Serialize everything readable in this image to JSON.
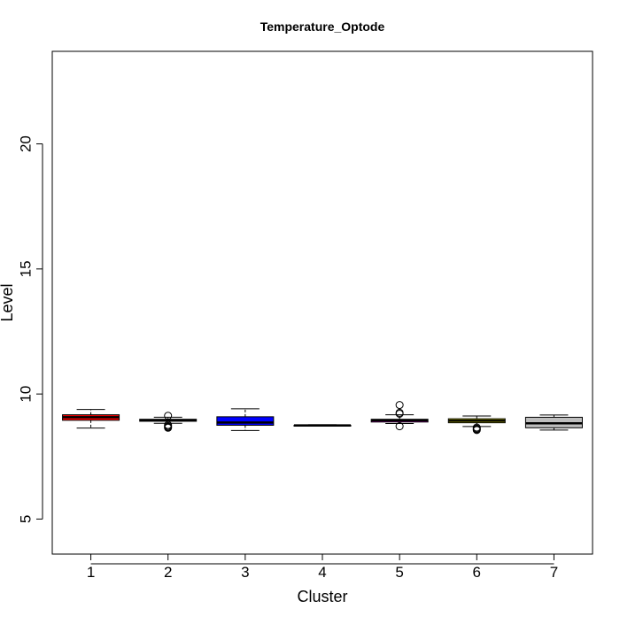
{
  "chart_data": {
    "type": "boxplot",
    "title": "Temperature_Optode",
    "xlabel": "Cluster",
    "ylabel": "Level",
    "categories": [
      "1",
      "2",
      "3",
      "4",
      "5",
      "6",
      "7"
    ],
    "ylim": [
      3.6,
      23.7
    ],
    "yticks": [
      5,
      10,
      15,
      20
    ],
    "grid": false,
    "legend": "none",
    "boxes": [
      {
        "category": "1",
        "color": "#FF0000",
        "whisker_low": 8.64,
        "q1": 8.95,
        "median": 9.07,
        "q3": 9.17,
        "whisker_high": 9.38,
        "outliers": []
      },
      {
        "category": "2",
        "color": "#00CD00",
        "whisker_low": 8.83,
        "q1": 8.91,
        "median": 8.95,
        "q3": 8.99,
        "whisker_high": 9.07,
        "outliers": [
          9.13,
          8.76,
          8.72,
          8.68,
          8.65
        ]
      },
      {
        "category": "3",
        "color": "#0000FF",
        "whisker_low": 8.54,
        "q1": 8.75,
        "median": 8.86,
        "q3": 9.09,
        "whisker_high": 9.41,
        "outliers": []
      },
      {
        "category": "4",
        "color": "#00FFFF",
        "whisker_low": 8.73,
        "q1": 8.74,
        "median": 8.745,
        "q3": 8.75,
        "whisker_high": 8.77,
        "outliers": []
      },
      {
        "category": "5",
        "color": "#FF00FF",
        "whisker_low": 8.82,
        "q1": 8.88,
        "median": 8.95,
        "q3": 8.99,
        "whisker_high": 9.17,
        "outliers": [
          9.56,
          9.25,
          9.21,
          8.71
        ]
      },
      {
        "category": "6",
        "color": "#CDCD00",
        "whisker_low": 8.7,
        "q1": 8.85,
        "median": 8.93,
        "q3": 9.01,
        "whisker_high": 9.12,
        "outliers": [
          8.66,
          8.62,
          8.59,
          8.56
        ]
      },
      {
        "category": "7",
        "color": "#BEBEBE",
        "whisker_low": 8.56,
        "q1": 8.65,
        "median": 8.83,
        "q3": 9.07,
        "whisker_high": 9.16,
        "outliers": []
      }
    ]
  }
}
